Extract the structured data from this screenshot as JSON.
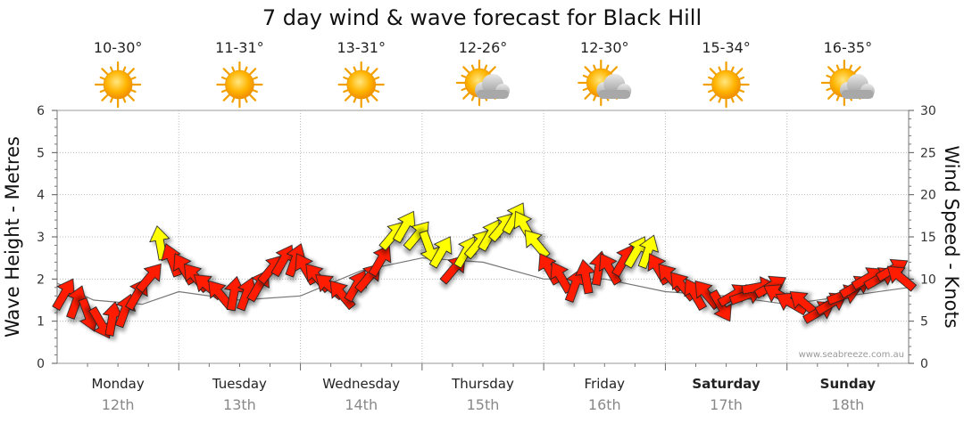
{
  "chart_data": {
    "type": "line",
    "title": "7 day wind & wave forecast for Black Hill",
    "ylabel_left": "Wave Height - Metres",
    "ylabel_right": "Wind Speed - Knots",
    "ylim_left": [
      0,
      6
    ],
    "ylim_right": [
      0,
      30
    ],
    "yticks_left": [
      "0",
      "1",
      "2",
      "3",
      "4",
      "5",
      "6"
    ],
    "yticks_right": [
      "0",
      "5",
      "10",
      "15",
      "20",
      "25",
      "30"
    ],
    "credit": "www.seabreeze.com.au",
    "days": [
      {
        "name": "Monday",
        "date": "12th",
        "temp": "10-30°",
        "weather": "sunny-icon",
        "bold": false
      },
      {
        "name": "Tuesday",
        "date": "13th",
        "temp": "11-31°",
        "weather": "sunny-icon",
        "bold": false
      },
      {
        "name": "Wednesday",
        "date": "14th",
        "temp": "13-31°",
        "weather": "sunny-icon",
        "bold": false
      },
      {
        "name": "Thursday",
        "date": "15th",
        "temp": "12-26°",
        "weather": "partly-cloudy-icon",
        "bold": false
      },
      {
        "name": "Friday",
        "date": "16th",
        "temp": "12-30°",
        "weather": "partly-cloudy-icon",
        "bold": false
      },
      {
        "name": "Saturday",
        "date": "17th",
        "temp": "15-34°",
        "weather": "sunny-icon",
        "bold": true
      },
      {
        "name": "Sunday",
        "date": "18th",
        "temp": "16-35°",
        "weather": "partly-cloudy-icon",
        "bold": true
      }
    ],
    "wind_series": {
      "name": "Wind speed (knots) & direction (deg towards)",
      "time_days": [
        0.05,
        0.15,
        0.25,
        0.35,
        0.45,
        0.55,
        0.65,
        0.75,
        0.85,
        0.95,
        1.05,
        1.15,
        1.25,
        1.35,
        1.45,
        1.55,
        1.65,
        1.75,
        1.85,
        1.95,
        2.05,
        2.15,
        2.25,
        2.35,
        2.45,
        2.55,
        2.65,
        2.75,
        2.85,
        2.95,
        3.05,
        3.15,
        3.25,
        3.35,
        3.45,
        3.55,
        3.65,
        3.75,
        3.85,
        3.95,
        4.05,
        4.15,
        4.25,
        4.35,
        4.45,
        4.55,
        4.65,
        4.75,
        4.85,
        4.95,
        5.05,
        5.15,
        5.25,
        5.35,
        5.45,
        5.55,
        5.65,
        5.75,
        5.85,
        5.95,
        6.05,
        6.15,
        6.25,
        6.35,
        6.45,
        6.55,
        6.65,
        6.75,
        6.85,
        6.95
      ],
      "speed": [
        8,
        7,
        6,
        5,
        5,
        6,
        8,
        10,
        14,
        12,
        11,
        10,
        9,
        8,
        8,
        8,
        9,
        11,
        12,
        12,
        11,
        10,
        9,
        8,
        9,
        10,
        12,
        15,
        16,
        15,
        14,
        13,
        11,
        13,
        14,
        15,
        16,
        17,
        16,
        14,
        11,
        10,
        9,
        10,
        11,
        11,
        12,
        13,
        13,
        11,
        10,
        9,
        8,
        8,
        7,
        8,
        8,
        9,
        9,
        8,
        7,
        7,
        6,
        7,
        8,
        9,
        10,
        10,
        11,
        10
      ],
      "direction": [
        30,
        20,
        160,
        150,
        10,
        20,
        30,
        40,
        350,
        340,
        330,
        320,
        310,
        320,
        10,
        20,
        30,
        40,
        30,
        20,
        330,
        320,
        310,
        320,
        30,
        40,
        30,
        40,
        30,
        40,
        160,
        30,
        40,
        30,
        40,
        30,
        40,
        30,
        330,
        320,
        330,
        330,
        20,
        350,
        10,
        330,
        30,
        30,
        20,
        330,
        320,
        320,
        330,
        320,
        150,
        60,
        70,
        80,
        60,
        300,
        300,
        310,
        60,
        60,
        70,
        60,
        60,
        60,
        60,
        310
      ]
    },
    "wave_series": {
      "name": "Wave height (metres)",
      "time_days": [
        0.0,
        0.3,
        0.7,
        1.0,
        1.5,
        2.0,
        2.5,
        3.0,
        3.5,
        4.0,
        4.5,
        5.0,
        5.5,
        6.0,
        6.5,
        7.0
      ],
      "height": [
        1.9,
        1.5,
        1.4,
        1.7,
        1.5,
        1.6,
        2.2,
        2.5,
        2.4,
        2.0,
        2.0,
        1.7,
        1.6,
        1.4,
        1.6,
        1.8
      ]
    }
  }
}
